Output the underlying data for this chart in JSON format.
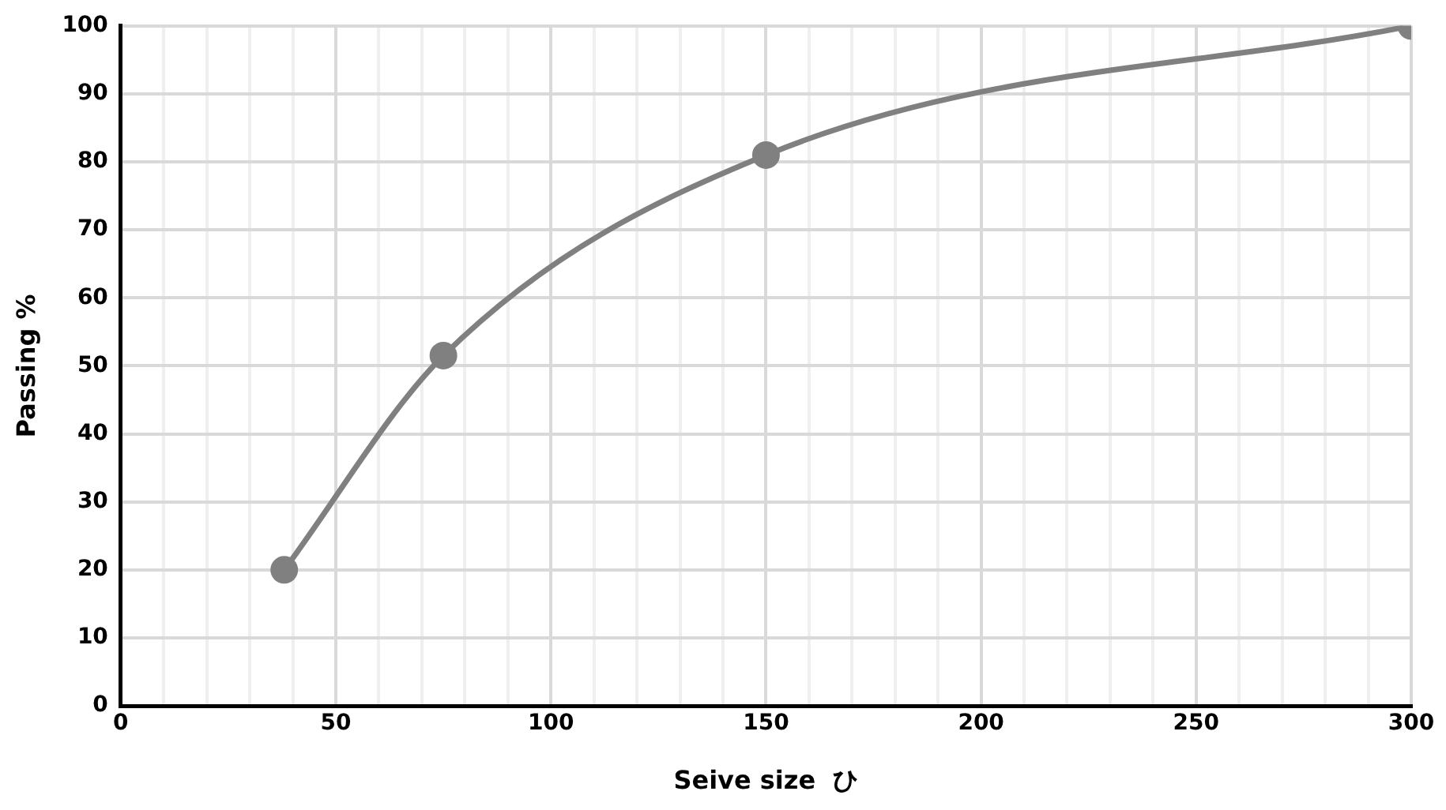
{
  "chart_data": {
    "type": "line",
    "xlabel": "Seive size  ひ",
    "ylabel": "Passing %",
    "x": [
      38,
      75,
      150,
      300
    ],
    "series": [
      {
        "color": "#808080",
        "values": [
          20,
          51.5,
          81,
          100
        ]
      }
    ],
    "xlim": [
      0,
      300
    ],
    "xticks": [
      0,
      {
        "value": 10,
        "label": null
      },
      {
        "value": 20,
        "label": null
      },
      {
        "value": 30,
        "label": null
      },
      {
        "value": 40,
        "label": null
      },
      50,
      {
        "value": 60,
        "label": null
      },
      {
        "value": 70,
        "label": null
      },
      {
        "value": 80,
        "label": null
      },
      {
        "value": 90,
        "label": null
      },
      100,
      {
        "value": 110,
        "label": null
      },
      {
        "value": 120,
        "label": null
      },
      {
        "value": 130,
        "label": null
      },
      {
        "value": 140,
        "label": null
      },
      150,
      {
        "value": 160,
        "label": null
      },
      {
        "value": 170,
        "label": null
      },
      {
        "value": 180,
        "label": null
      },
      {
        "value": 190,
        "label": null
      },
      200,
      {
        "value": 210,
        "label": null
      },
      {
        "value": 220,
        "label": null
      },
      {
        "value": 230,
        "label": null
      },
      {
        "value": 240,
        "label": null
      },
      250,
      {
        "value": 260,
        "label": null
      },
      {
        "value": 270,
        "label": null
      },
      {
        "value": 280,
        "label": null
      },
      {
        "value": 290,
        "label": null
      },
      300
    ],
    "ylim": [
      0,
      100
    ],
    "yticks": [
      0,
      10,
      20,
      30,
      40,
      50,
      60,
      70,
      80,
      90,
      100
    ],
    "grid": true,
    "marker": "circle",
    "line_style": "solid",
    "legend": false
  }
}
